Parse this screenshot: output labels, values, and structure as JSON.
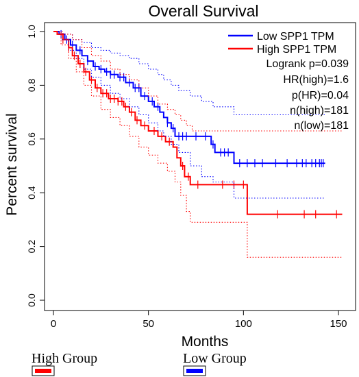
{
  "chart_data": {
    "type": "line",
    "title": "Overall Survival",
    "xlabel": "Months",
    "ylabel": "Percent survival",
    "xlim": [
      0,
      155
    ],
    "ylim": [
      0,
      1.0
    ],
    "x_ticks": [
      "0",
      "50",
      "100",
      "150"
    ],
    "y_ticks": [
      "0.0",
      "0.2",
      "0.4",
      "0.6",
      "0.8",
      "1.0"
    ],
    "legend": {
      "position": "top-right",
      "entries": [
        {
          "label": "Low SPP1 TPM",
          "color": "#0000ff"
        },
        {
          "label": "High SPP1 TPM",
          "color": "#ff0000"
        }
      ]
    },
    "stats": [
      "Logrank p=0.039",
      "HR(high)=1.6",
      "p(HR)=0.04",
      "n(high)=181",
      "n(low)=181"
    ],
    "series": [
      {
        "name": "Low SPP1 TPM",
        "color": "#0000ff",
        "steps": [
          [
            0,
            1.0
          ],
          [
            3,
            0.99
          ],
          [
            6,
            0.97
          ],
          [
            9,
            0.95
          ],
          [
            12,
            0.93
          ],
          [
            15,
            0.91
          ],
          [
            18,
            0.89
          ],
          [
            21,
            0.87
          ],
          [
            24,
            0.86
          ],
          [
            27,
            0.85
          ],
          [
            30,
            0.84
          ],
          [
            34,
            0.83
          ],
          [
            38,
            0.81
          ],
          [
            42,
            0.79
          ],
          [
            46,
            0.76
          ],
          [
            50,
            0.74
          ],
          [
            53,
            0.72
          ],
          [
            56,
            0.7
          ],
          [
            58,
            0.68
          ],
          [
            60,
            0.66
          ],
          [
            62,
            0.64
          ],
          [
            64,
            0.61
          ],
          [
            83,
            0.58
          ],
          [
            85,
            0.55
          ],
          [
            95,
            0.51
          ],
          [
            143,
            0.51
          ]
        ],
        "censor_x": [
          4,
          7,
          10,
          14,
          18,
          22,
          25,
          28,
          30,
          32,
          35,
          37,
          40,
          43,
          45,
          48,
          52,
          55,
          60,
          63,
          66,
          68,
          70,
          75,
          80,
          84,
          88,
          90,
          92,
          98,
          102,
          106,
          110,
          117,
          123,
          128,
          131,
          133,
          136,
          138,
          140,
          141,
          142
        ]
      },
      {
        "name": "High SPP1 TPM",
        "color": "#ff0000",
        "steps": [
          [
            0,
            1.0
          ],
          [
            2,
            0.99
          ],
          [
            5,
            0.97
          ],
          [
            8,
            0.94
          ],
          [
            10,
            0.91
          ],
          [
            13,
            0.88
          ],
          [
            16,
            0.85
          ],
          [
            19,
            0.82
          ],
          [
            22,
            0.79
          ],
          [
            25,
            0.77
          ],
          [
            29,
            0.75
          ],
          [
            34,
            0.74
          ],
          [
            37,
            0.72
          ],
          [
            40,
            0.7
          ],
          [
            43,
            0.67
          ],
          [
            46,
            0.65
          ],
          [
            50,
            0.63
          ],
          [
            55,
            0.61
          ],
          [
            59,
            0.59
          ],
          [
            63,
            0.57
          ],
          [
            65,
            0.53
          ],
          [
            67,
            0.5
          ],
          [
            69,
            0.46
          ],
          [
            72,
            0.43
          ],
          [
            102,
            0.32
          ],
          [
            152,
            0.32
          ]
        ],
        "censor_x": [
          5,
          8,
          11,
          14,
          17,
          20,
          23,
          26,
          28,
          30,
          32,
          34,
          36,
          38,
          41,
          44,
          48,
          53,
          57,
          61,
          68,
          71,
          76,
          89,
          95,
          100,
          118,
          132,
          138,
          149
        ]
      },
      {
        "name": "",
        "color": "#0000ff",
        "dotted": true,
        "steps": [
          [
            0,
            1.0
          ],
          [
            5,
            0.99
          ],
          [
            10,
            0.97
          ],
          [
            15,
            0.96
          ],
          [
            20,
            0.94
          ],
          [
            25,
            0.93
          ],
          [
            30,
            0.92
          ],
          [
            35,
            0.91
          ],
          [
            40,
            0.9
          ],
          [
            45,
            0.88
          ],
          [
            50,
            0.86
          ],
          [
            55,
            0.84
          ],
          [
            58,
            0.82
          ],
          [
            62,
            0.8
          ],
          [
            66,
            0.78
          ],
          [
            72,
            0.76
          ],
          [
            78,
            0.74
          ],
          [
            84,
            0.72
          ],
          [
            95,
            0.69
          ],
          [
            143,
            0.69
          ]
        ]
      },
      {
        "name": "",
        "color": "#0000ff",
        "dotted": true,
        "steps": [
          [
            0,
            1.0
          ],
          [
            4,
            0.97
          ],
          [
            8,
            0.93
          ],
          [
            12,
            0.9
          ],
          [
            16,
            0.86
          ],
          [
            20,
            0.83
          ],
          [
            25,
            0.8
          ],
          [
            30,
            0.77
          ],
          [
            35,
            0.75
          ],
          [
            40,
            0.72
          ],
          [
            45,
            0.69
          ],
          [
            50,
            0.66
          ],
          [
            55,
            0.63
          ],
          [
            58,
            0.61
          ],
          [
            62,
            0.58
          ],
          [
            66,
            0.55
          ],
          [
            72,
            0.5
          ],
          [
            78,
            0.46
          ],
          [
            84,
            0.44
          ],
          [
            95,
            0.38
          ],
          [
            143,
            0.38
          ]
        ]
      },
      {
        "name": "",
        "color": "#ff0000",
        "dotted": true,
        "steps": [
          [
            0,
            1.0
          ],
          [
            5,
            0.99
          ],
          [
            10,
            0.97
          ],
          [
            15,
            0.94
          ],
          [
            20,
            0.91
          ],
          [
            25,
            0.89
          ],
          [
            30,
            0.86
          ],
          [
            35,
            0.84
          ],
          [
            40,
            0.82
          ],
          [
            45,
            0.79
          ],
          [
            50,
            0.76
          ],
          [
            55,
            0.73
          ],
          [
            60,
            0.71
          ],
          [
            64,
            0.69
          ],
          [
            67,
            0.67
          ],
          [
            70,
            0.65
          ],
          [
            73,
            0.63
          ],
          [
            102,
            0.63
          ],
          [
            152,
            0.63
          ]
        ]
      },
      {
        "name": "",
        "color": "#ff0000",
        "dotted": true,
        "steps": [
          [
            0,
            1.0
          ],
          [
            4,
            0.95
          ],
          [
            8,
            0.9
          ],
          [
            12,
            0.85
          ],
          [
            16,
            0.8
          ],
          [
            20,
            0.76
          ],
          [
            25,
            0.71
          ],
          [
            30,
            0.68
          ],
          [
            35,
            0.65
          ],
          [
            40,
            0.61
          ],
          [
            45,
            0.57
          ],
          [
            50,
            0.54
          ],
          [
            55,
            0.51
          ],
          [
            60,
            0.48
          ],
          [
            64,
            0.44
          ],
          [
            67,
            0.39
          ],
          [
            70,
            0.33
          ],
          [
            72,
            0.29
          ],
          [
            102,
            0.16
          ],
          [
            152,
            0.16
          ]
        ]
      }
    ]
  },
  "groups_legend": [
    {
      "label": "High Group",
      "color": "#ff0000"
    },
    {
      "label": "Low Group",
      "color": "#0000ff"
    }
  ]
}
